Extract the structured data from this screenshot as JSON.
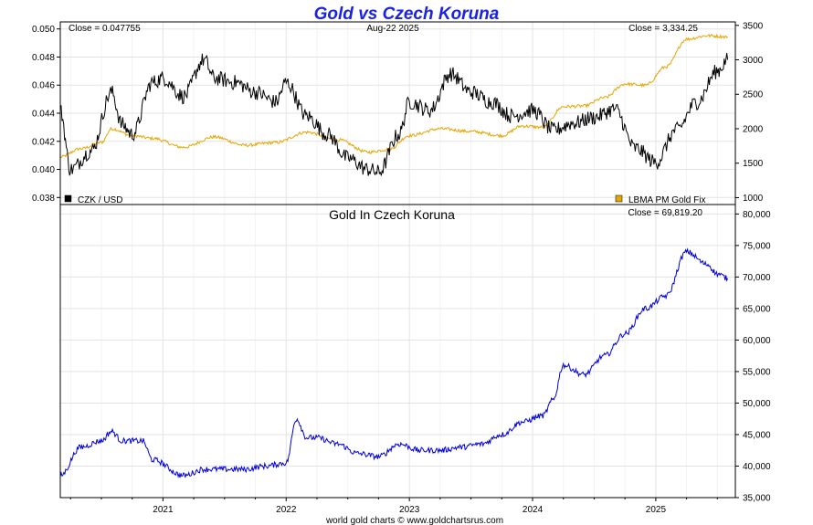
{
  "chart_data": [
    {
      "type": "line",
      "title": "Gold vs Czech Koruna",
      "date_label": "Aug-22  2025",
      "x_range": [
        "2020-03",
        "2025-08"
      ],
      "x_tick_labels": [
        "2021",
        "2022",
        "2023",
        "2024",
        "2025"
      ],
      "grid": true,
      "left_axis": {
        "ylim": [
          0.0375,
          0.0505
        ],
        "tick_labels": [
          "0.050",
          "0.048",
          "0.046",
          "0.044",
          "0.042",
          "0.040",
          "0.038"
        ]
      },
      "right_axis": {
        "ylim": [
          900,
          3550
        ],
        "tick_labels": [
          "3500",
          "3000",
          "2500",
          "2000",
          "1500",
          "1000"
        ]
      },
      "series": [
        {
          "name": "CZK / USD",
          "axis": "left",
          "color": "#000000",
          "close_label": "Close = 0.047755",
          "x": [
            "2020-03",
            "2020-04",
            "2020-06",
            "2020-08",
            "2020-09",
            "2020-10",
            "2020-12",
            "2021-01",
            "2021-03",
            "2021-05",
            "2021-06",
            "2021-08",
            "2021-10",
            "2021-12",
            "2022-01",
            "2022-03",
            "2022-05",
            "2022-07",
            "2022-09",
            "2022-10",
            "2022-12",
            "2023-01",
            "2023-03",
            "2023-05",
            "2023-07",
            "2023-09",
            "2023-11",
            "2024-01",
            "2024-03",
            "2024-05",
            "2024-07",
            "2024-09",
            "2024-11",
            "2025-01",
            "2025-03",
            "2025-05",
            "2025-07",
            "2025-08"
          ],
          "values": [
            0.0442,
            0.04,
            0.0413,
            0.0455,
            0.0432,
            0.0425,
            0.0462,
            0.0465,
            0.0452,
            0.0478,
            0.0465,
            0.0462,
            0.0455,
            0.0448,
            0.0462,
            0.0438,
            0.0425,
            0.0408,
            0.04,
            0.0398,
            0.0425,
            0.0448,
            0.0442,
            0.0468,
            0.0455,
            0.0448,
            0.0438,
            0.0442,
            0.0428,
            0.0433,
            0.0437,
            0.0443,
            0.0415,
            0.0405,
            0.0428,
            0.0448,
            0.047,
            0.0478
          ]
        },
        {
          "name": "LBMA PM Gold Fix",
          "axis": "right",
          "color": "#e8a400",
          "close_label": "Close = 3,334.25",
          "x": [
            "2020-03",
            "2020-05",
            "2020-07",
            "2020-08",
            "2020-10",
            "2020-12",
            "2021-03",
            "2021-06",
            "2021-09",
            "2021-12",
            "2022-03",
            "2022-06",
            "2022-09",
            "2022-11",
            "2023-01",
            "2023-04",
            "2023-07",
            "2023-10",
            "2023-12",
            "2024-02",
            "2024-04",
            "2024-06",
            "2024-08",
            "2024-10",
            "2024-12",
            "2025-02",
            "2025-04",
            "2025-06",
            "2025-08"
          ],
          "values": [
            1590,
            1710,
            1800,
            2000,
            1900,
            1860,
            1730,
            1880,
            1760,
            1800,
            1950,
            1840,
            1660,
            1700,
            1900,
            2000,
            1960,
            1900,
            2040,
            2020,
            2320,
            2330,
            2450,
            2650,
            2630,
            2900,
            3300,
            3350,
            3334
          ]
        }
      ]
    },
    {
      "type": "line",
      "title": "Gold In Czech Koruna",
      "close_label": "Close = 69,819.20",
      "ylim": [
        35000,
        81500
      ],
      "y_tick_labels": [
        "80,000",
        "75,000",
        "70,000",
        "65,000",
        "60,000",
        "55,000",
        "50,000",
        "45,000",
        "40,000",
        "35,000"
      ],
      "x_tick_labels": [
        "2021",
        "2022",
        "2023",
        "2024",
        "2025"
      ],
      "grid": true,
      "series": [
        {
          "color": "#0000dd",
          "x": [
            "2020-03",
            "2020-05",
            "2020-07",
            "2020-08",
            "2020-09",
            "2020-11",
            "2020-12",
            "2021-03",
            "2021-05",
            "2021-07",
            "2021-09",
            "2021-11",
            "2022-01",
            "2022-02",
            "2022-03",
            "2022-04",
            "2022-06",
            "2022-08",
            "2022-10",
            "2022-12",
            "2023-02",
            "2023-04",
            "2023-06",
            "2023-08",
            "2023-10",
            "2023-12",
            "2024-02",
            "2024-03",
            "2024-04",
            "2024-06",
            "2024-08",
            "2024-10",
            "2024-12",
            "2025-02",
            "2025-04",
            "2025-06",
            "2025-07",
            "2025-08"
          ],
          "values": [
            38500,
            43000,
            44000,
            45500,
            44000,
            44000,
            41000,
            38500,
            39500,
            39500,
            39500,
            40000,
            40500,
            47500,
            44500,
            44500,
            43500,
            42000,
            41500,
            43500,
            42500,
            42500,
            43000,
            43500,
            45000,
            47000,
            48000,
            50500,
            56000,
            54500,
            57500,
            61000,
            65000,
            67000,
            74000,
            72000,
            70500,
            69800
          ]
        }
      ]
    }
  ],
  "footer": "world gold charts © www.goldchartsrus.com"
}
